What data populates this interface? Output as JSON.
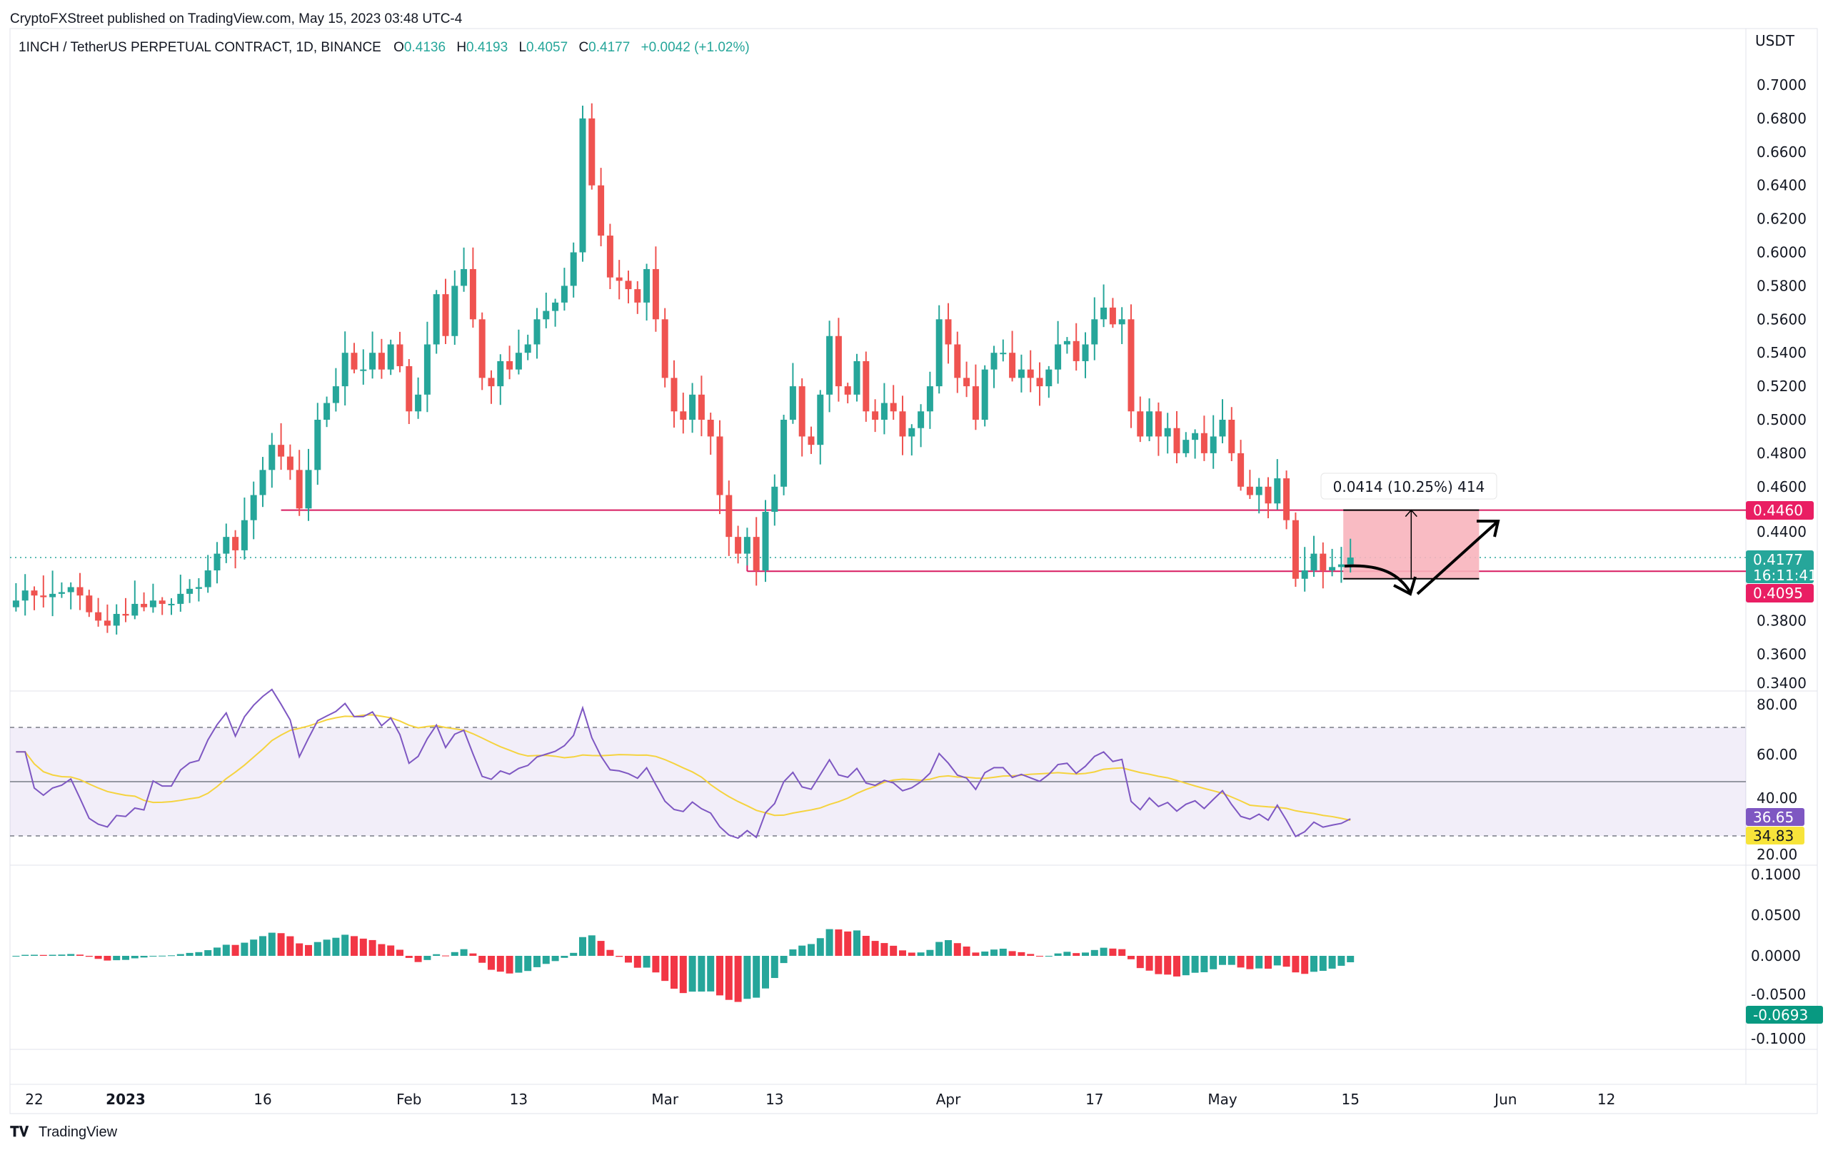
{
  "header": {
    "published": "CryptoFXStreet published on TradingView.com, May 15, 2023 03:48 UTC-4",
    "symbol": "1INCH / TetherUS PERPETUAL CONTRACT, 1D, BINANCE",
    "o_label": "O",
    "o": "0.4136",
    "h_label": "H",
    "h": "0.4193",
    "l_label": "L",
    "l": "0.4057",
    "c_label": "C",
    "c": "0.4177",
    "change": "+0.0042 (+1.02%)"
  },
  "footer": {
    "brand": "TradingView",
    "logo_text": "TV"
  },
  "colors": {
    "up": "#26a69a",
    "down": "#ef5350",
    "level": "#d81b60",
    "rsi": "#7e57c2",
    "rsi_ma": "#f5d33f",
    "box": "#f8b4bc"
  },
  "annotations": {
    "measure_label": "0.0414 (10.25%) 414",
    "level_high": "0.4460",
    "level_low": "0.4095",
    "last_price": "0.4177",
    "countdown": "16:11:41",
    "rsi_value": "36.65",
    "rsi_ma_value": "34.83",
    "macd_hist_value": "-0.0693"
  },
  "chart_data": {
    "type": "candlestick",
    "title": "1INCH / TetherUS PERPETUAL CONTRACT, 1D, BINANCE",
    "start_date": "2022-12-20",
    "end_date": "2023-05-15",
    "currency_label": "USDT",
    "ylim": [
      0.34,
      0.72
    ],
    "close": [
      0.392,
      0.398,
      0.395,
      0.394,
      0.396,
      0.397,
      0.4,
      0.395,
      0.385,
      0.38,
      0.377,
      0.384,
      0.383,
      0.39,
      0.388,
      0.392,
      0.39,
      0.39,
      0.396,
      0.399,
      0.4,
      0.41,
      0.42,
      0.43,
      0.422,
      0.44,
      0.455,
      0.47,
      0.485,
      0.478,
      0.47,
      0.447,
      0.47,
      0.5,
      0.51,
      0.52,
      0.54,
      0.53,
      0.53,
      0.54,
      0.53,
      0.545,
      0.532,
      0.505,
      0.515,
      0.545,
      0.575,
      0.55,
      0.58,
      0.59,
      0.56,
      0.525,
      0.52,
      0.535,
      0.53,
      0.54,
      0.545,
      0.56,
      0.565,
      0.57,
      0.58,
      0.6,
      0.68,
      0.64,
      0.61,
      0.585,
      0.583,
      0.578,
      0.57,
      0.59,
      0.56,
      0.525,
      0.505,
      0.5,
      0.515,
      0.5,
      0.49,
      0.455,
      0.43,
      0.42,
      0.43,
      0.41,
      0.445,
      0.46,
      0.5,
      0.52,
      0.49,
      0.485,
      0.515,
      0.55,
      0.52,
      0.515,
      0.535,
      0.505,
      0.5,
      0.51,
      0.505,
      0.49,
      0.495,
      0.505,
      0.52,
      0.56,
      0.545,
      0.525,
      0.52,
      0.5,
      0.53,
      0.54,
      0.54,
      0.525,
      0.53,
      0.525,
      0.52,
      0.53,
      0.545,
      0.547,
      0.535,
      0.545,
      0.56,
      0.567,
      0.557,
      0.56,
      0.505,
      0.49,
      0.505,
      0.49,
      0.495,
      0.48,
      0.488,
      0.492,
      0.48,
      0.49,
      0.5,
      0.48,
      0.46,
      0.455,
      0.46,
      0.45,
      0.465,
      0.44,
      0.405,
      0.41,
      0.42,
      0.41,
      0.412,
      0.4136,
      0.4177
    ],
    "price_ticks": [
      "0.7000",
      "0.6800",
      "0.6600",
      "0.6400",
      "0.6200",
      "0.6000",
      "0.5800",
      "0.5600",
      "0.5400",
      "0.5200",
      "0.5000",
      "0.4800",
      "0.4600",
      "0.4400",
      "0.3800",
      "0.3600",
      "0.3400"
    ],
    "levels": {
      "resistance": 0.446,
      "support": 0.4095,
      "last": 0.4177
    },
    "measure_box": {
      "from": 0.405,
      "to": 0.446,
      "start": "2023-05-15",
      "end": "2023-05-29"
    },
    "time_ticks": [
      {
        "label": "22",
        "date": "2022-12-22"
      },
      {
        "label": "2023",
        "date": "2023-01-01",
        "bold": true
      },
      {
        "label": "16",
        "date": "2023-01-16"
      },
      {
        "label": "Feb",
        "date": "2023-02-01"
      },
      {
        "label": "13",
        "date": "2023-02-13"
      },
      {
        "label": "Mar",
        "date": "2023-03-01"
      },
      {
        "label": "13",
        "date": "2023-03-13"
      },
      {
        "label": "Apr",
        "date": "2023-04-01"
      },
      {
        "label": "17",
        "date": "2023-04-17"
      },
      {
        "label": "May",
        "date": "2023-05-01"
      },
      {
        "label": "15",
        "date": "2023-05-15"
      },
      {
        "label": "Jun",
        "date": "2023-06-01"
      },
      {
        "label": "12",
        "date": "2023-06-12"
      }
    ],
    "rsi": {
      "period": 14,
      "ma_period": 14,
      "ticks": [
        "80.00",
        "60.00",
        "40.00",
        "20.00"
      ],
      "bands": [
        70,
        50,
        30
      ],
      "last": 36.65,
      "ma_last": 34.83
    },
    "macd": {
      "fast": 12,
      "slow": 26,
      "signal": 9,
      "ticks": [
        "0.1000",
        "0.0500",
        "0.0000",
        "-0.0500",
        "-0.1000"
      ],
      "last": -0.0693
    }
  }
}
